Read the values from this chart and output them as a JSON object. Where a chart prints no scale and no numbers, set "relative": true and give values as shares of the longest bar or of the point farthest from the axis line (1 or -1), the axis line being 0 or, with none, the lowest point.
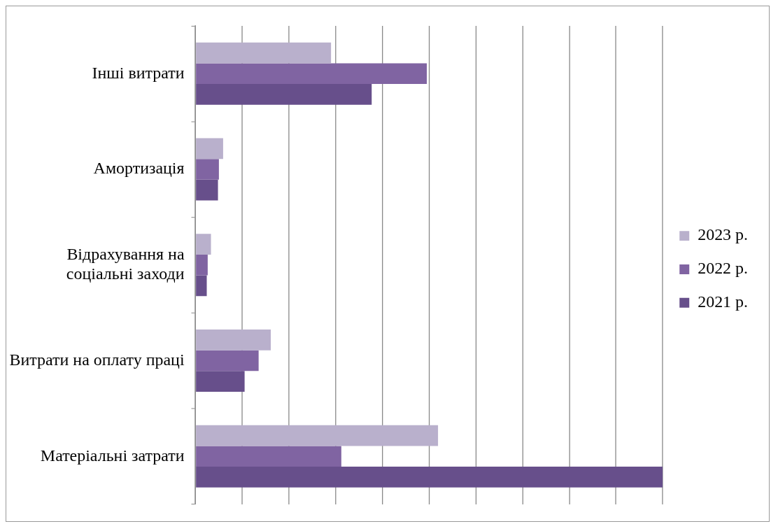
{
  "chart_data": {
    "type": "bar",
    "orientation": "horizontal",
    "relative": true,
    "grid": "x",
    "legend": "right",
    "categories": [
      "Інші витрати",
      "Амортизація",
      "Відрахування на соціальні заходи",
      "Витрати на оплату праці",
      "Матеріальні затрати"
    ],
    "series": [
      {
        "name": "2023 р.",
        "color": "#b9b0cc",
        "values": [
          0.29,
          0.059,
          0.033,
          0.161,
          0.519
        ]
      },
      {
        "name": "2022 р.",
        "color": "#8064a2",
        "values": [
          0.495,
          0.05,
          0.026,
          0.135,
          0.312
        ]
      },
      {
        "name": "2021 р.",
        "color": "#674f8b",
        "values": [
          0.377,
          0.048,
          0.024,
          0.105,
          1
        ]
      }
    ]
  }
}
